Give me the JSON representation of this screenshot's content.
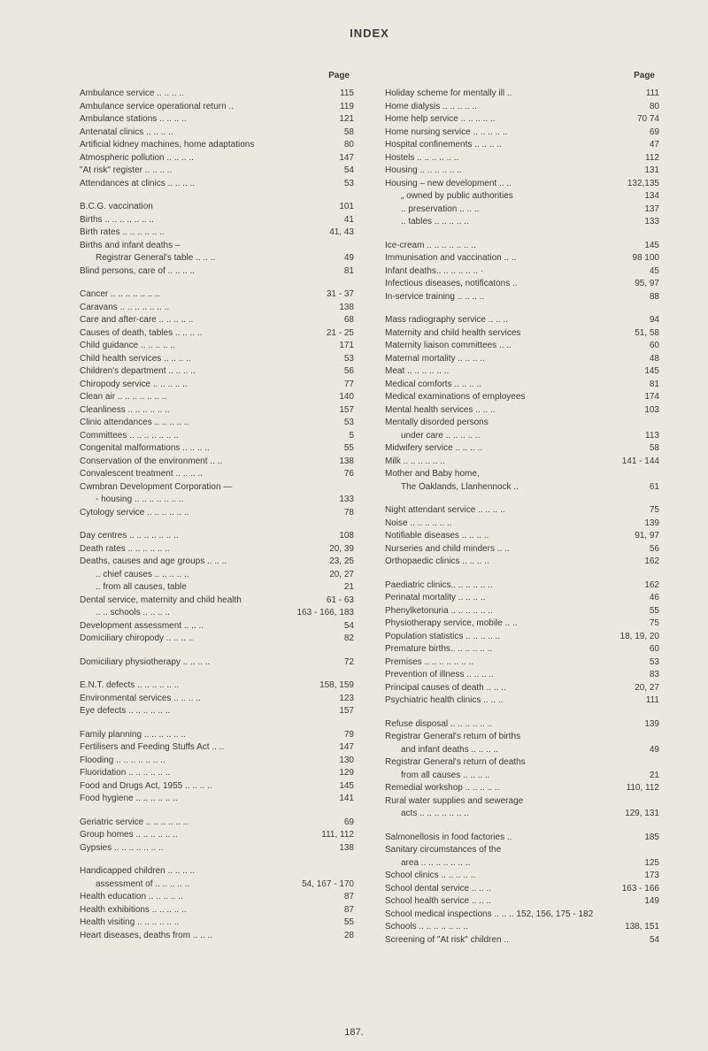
{
  "title": "INDEX",
  "pageHeaderLabel": "Page",
  "footer": "187.",
  "left": [
    {
      "t": "Ambulance service  .. .. .. ..",
      "p": "115"
    },
    {
      "t": "Ambulance service operational return ..",
      "p": "119"
    },
    {
      "t": "Ambulance stations   .. .. .. ..",
      "p": "121"
    },
    {
      "t": "Antenatal clinics    .. .. .. ..",
      "p": "58"
    },
    {
      "t": "Artificial kidney machines, home adaptations",
      "p": "80"
    },
    {
      "t": "Atmospheric pollution .. .. .. ..",
      "p": "147"
    },
    {
      "t": "\"At risk\" register   .. .. .. ..",
      "p": "54"
    },
    {
      "t": "Attendances at clinics .. .. .. ..",
      "p": "53"
    },
    {
      "gap": true
    },
    {
      "t": "B.C.G. vaccination",
      "p": "101"
    },
    {
      "t": "Births .. .. .. .. .. .. ..",
      "p": "41"
    },
    {
      "t": "Birth rates  .. .. .. .. .. ..",
      "p": "41, 43"
    },
    {
      "t": "Births and infant deaths –",
      "p": ""
    },
    {
      "t": "Registrar General's table  .. .. ..",
      "p": "49",
      "i": 1
    },
    {
      "t": "Blind persons, care of  .. .. .. ..",
      "p": "81"
    },
    {
      "gap": true
    },
    {
      "t": "Cancer  .. .. .. .. .. .. ..",
      "p": "31 - 37"
    },
    {
      "t": "Caravans .. .. .. .. .. .. ..",
      "p": "138"
    },
    {
      "t": "Care and after-care .. .. .. .. ..",
      "p": "68"
    },
    {
      "t": "Causes of death, tables .. .. .. ..",
      "p": "21 - 25"
    },
    {
      "t": "Child guidance  .. .. .. .. ..",
      "p": "171"
    },
    {
      "t": "Child health services  .. .. .. ..",
      "p": "53"
    },
    {
      "t": "Children's department .. .. .. ..",
      "p": "56"
    },
    {
      "t": "Chiropody service  .. .. .. .. ..",
      "p": "77"
    },
    {
      "t": "Clean air .. .. .. .. .. .. ..",
      "p": "140"
    },
    {
      "t": "Cleanliness  .. .. .. .. .. ..",
      "p": "157"
    },
    {
      "t": "Clinic attendances  .. .. .. .. ..",
      "p": "53"
    },
    {
      "t": "Committees .. .. .. .. .. .. ..",
      "p": "5"
    },
    {
      "t": "Congenital malformations .. .. .. ..",
      "p": "55"
    },
    {
      "t": "Conservation of the environment .. ..",
      "p": "138"
    },
    {
      "t": "Convalescent treatment .. .. .. ..",
      "p": "76"
    },
    {
      "t": "Cwmbran Development Corporation —",
      "p": ""
    },
    {
      "t": "- housing .. .. .. .. .. .. ..",
      "p": "133",
      "i": 1
    },
    {
      "t": "Cytology service .. .. .. .. .. ..",
      "p": "78"
    },
    {
      "gap": true
    },
    {
      "t": "Day centres .. .. .. .. .. .. ..",
      "p": "108"
    },
    {
      "t": "Death rates  .. .. .. .. .. ..",
      "p": "20, 39"
    },
    {
      "t": "Deaths, causes and age groups .. .. ..",
      "p": "23, 25"
    },
    {
      "t": "..   chief causes .. .. .. .. ..",
      "p": "20, 27",
      "i": 1
    },
    {
      "t": "..   from all causes, table",
      "p": "21",
      "i": 1
    },
    {
      "t": "Dental service, maternity and child health",
      "p": "61 - 63"
    },
    {
      "t": "..  ..  schools  .. .. .. ..",
      "p": "163 - 166, 183",
      "i": 1
    },
    {
      "t": "Development assessment  .. .. ..",
      "p": "54"
    },
    {
      "t": "Domiciliary chiropody .. .. .. ..",
      "p": "82"
    },
    {
      "gap": true
    },
    {
      "t": "Domiciliary physiotherapy .. .. .. ..",
      "p": "72"
    },
    {
      "gap": true
    },
    {
      "t": "E.N.T. defects  .. .. .. .. .. ..",
      "p": "158, 159"
    },
    {
      "t": "Environmental services .. .. .. ..",
      "p": "123"
    },
    {
      "t": "Eye defects  .. .. .. .. .. ..",
      "p": "157"
    },
    {
      "gap": true
    },
    {
      "t": "Family planning .. .. .. .. .. ..",
      "p": "79"
    },
    {
      "t": "Fertilisers and Feeding Stuffs Act .. ..",
      "p": "147"
    },
    {
      "t": "Flooding .. .. .. .. .. .. ..",
      "p": "130"
    },
    {
      "t": "Fluoridation .. .. .. .. .. ..",
      "p": "129"
    },
    {
      "t": "Food and Drugs Act, 1955 .. .. .. ..",
      "p": "145"
    },
    {
      "t": "Food hygiene  .. .. .. .. .. ..",
      "p": "141"
    },
    {
      "gap": true
    },
    {
      "t": "Geriatric service .. .. .. .. .. ..",
      "p": "69"
    },
    {
      "t": "Group homes  .. .. .. .. .. ..",
      "p": "111, 112"
    },
    {
      "t": "Gypsies  .. .. .. .. .. .. ..",
      "p": "138"
    },
    {
      "gap": true
    },
    {
      "t": "Handicapped children  .. .. .. ..",
      "p": ""
    },
    {
      "t": "assessment of  .. .. .. .. ..",
      "p": "54, 167 - 170",
      "i": 1
    },
    {
      "t": "Health education  .. .. .. .. ..",
      "p": "87"
    },
    {
      "t": "Health exhibitions  .. .. .. .. ..",
      "p": "87"
    },
    {
      "t": "Health visiting  .. .. .. .. .. ..",
      "p": "55"
    },
    {
      "t": "Heart diseases, deaths from  .. .. ..",
      "p": "28"
    }
  ],
  "right": [
    {
      "t": "Holiday scheme for mentally ill  ..",
      "p": "111"
    },
    {
      "t": "Home dialysis   .. .. .. .. ..",
      "p": "80"
    },
    {
      "t": "Home help service  .. .. .. .. ..",
      "p": "70  74"
    },
    {
      "t": "Home nursing service .. .. .. .. ..",
      "p": "69"
    },
    {
      "t": "Hospital confinements .. .. .. ..",
      "p": "47"
    },
    {
      "t": "Hostels   .. .. .. .. .. ..",
      "p": "112"
    },
    {
      "t": "Housing   .. .. .. .. .. ..",
      "p": "131"
    },
    {
      "t": "Housing – new development  .. ..",
      "p": "132,135"
    },
    {
      "t": "„     owned by public authorities",
      "p": "134",
      "i": 1
    },
    {
      "t": "..    preservation  .. .. ..",
      "p": "137",
      "i": 1
    },
    {
      "t": "..    tables .. .. .. .. ..",
      "p": "133",
      "i": 1
    },
    {
      "gap": true
    },
    {
      "t": "Ice-cream .. .. .. .. .. .. ..",
      "p": "145"
    },
    {
      "t": "Immunisation and vaccination .. ..",
      "p": "98  100"
    },
    {
      "t": "Infant deaths.. .. .. .. .. .. ·",
      "p": "45"
    },
    {
      "t": "Infectious diseases, notificatons  ..",
      "p": "95, 97"
    },
    {
      "t": "In-service training  .. .. .. ..",
      "p": "88"
    },
    {
      "gap": true
    },
    {
      "t": "Mass radiography service  .. .. ..",
      "p": "94"
    },
    {
      "t": "Maternity and child health services",
      "p": "51, 58"
    },
    {
      "t": "Maternity liaison committees  .. ..",
      "p": "60"
    },
    {
      "t": "Maternal mortality  .. .. .. ..",
      "p": "48"
    },
    {
      "t": "Meat    .. .. .. .. .. ..",
      "p": "145"
    },
    {
      "t": "Medical comforts   .. .. .. ..",
      "p": "81"
    },
    {
      "t": "Medical examinations of employees",
      "p": "174"
    },
    {
      "t": "Mental health services  .. .. ..",
      "p": "103"
    },
    {
      "t": "Mentally disorded persons",
      "p": ""
    },
    {
      "t": "under care  .. .. .. .. ..",
      "p": "113",
      "i": 1
    },
    {
      "t": "Midwifery service  .. .. .. ..",
      "p": "58"
    },
    {
      "t": "Milk    .. .. .. .. .. ..",
      "p": "141 - 144"
    },
    {
      "t": "Mother and Baby home,",
      "p": ""
    },
    {
      "t": "The Oaklands, Llanhennock  ..",
      "p": "61",
      "i": 1
    },
    {
      "gap": true
    },
    {
      "t": "Night attendant service .. .. .. ..",
      "p": "75"
    },
    {
      "t": "Noise   .. .. .. .. .. ..",
      "p": "139"
    },
    {
      "t": "Notifiable diseases  .. .. .. ..",
      "p": "91, 97"
    },
    {
      "t": "Nurseries and child minders  .. ..",
      "p": "56"
    },
    {
      "t": "Orthopaedic clinics  .. .. .. ..",
      "p": "162"
    },
    {
      "gap": true
    },
    {
      "t": "Paediatric clinics.. .. .. .. .. ..",
      "p": "162"
    },
    {
      "t": "Perinatal mortality  .. .. .. ..",
      "p": "46"
    },
    {
      "t": "Phenylketonuria .. .. .. .. .. ..",
      "p": "55"
    },
    {
      "t": "Physiotherapy service, mobile .. ..",
      "p": "75"
    },
    {
      "t": "Population statistics .. .. .. .. ..",
      "p": "18, 19, 20"
    },
    {
      "t": "Premature births.. .. .. .. .. ..",
      "p": "60"
    },
    {
      "t": "Premises .. .. .. .. .. .. ..",
      "p": "53"
    },
    {
      "t": "Prevention of illness  .. .. .. ..",
      "p": "83"
    },
    {
      "t": "Principal causes of death  .. .. ..",
      "p": "20, 27"
    },
    {
      "t": "Psychiatric health clinics  .. .. ..",
      "p": "111"
    },
    {
      "gap": true
    },
    {
      "t": "Refuse disposal .. .. .. .. .. ..",
      "p": "139"
    },
    {
      "t": "Registrar General's return of births",
      "p": ""
    },
    {
      "t": "and infant deaths  .. .. .. ..",
      "p": "49",
      "i": 1
    },
    {
      "t": "Registrar General's return of deaths",
      "p": ""
    },
    {
      "t": "from all causes  .. .. .. ..",
      "p": "21",
      "i": 1
    },
    {
      "t": "Remedial workshop .. .. .. .. ..",
      "p": "110, 112"
    },
    {
      "t": "Rural water supplies and sewerage",
      "p": ""
    },
    {
      "t": "acts  .. .. .. .. .. .. ..",
      "p": "129, 131",
      "i": 1
    },
    {
      "gap": true
    },
    {
      "t": "Salmonellosis in food factories  ..",
      "p": "185"
    },
    {
      "t": "Sanitary circumstances of the",
      "p": ""
    },
    {
      "t": "area .. .. .. .. .. .. ..",
      "p": "125",
      "i": 1
    },
    {
      "t": "School clinics  .. .. .. .. ..",
      "p": "173"
    },
    {
      "t": "School dental service  .. .. ..",
      "p": "163 - 166"
    },
    {
      "t": "School health service  .. .. ..",
      "p": "149"
    },
    {
      "t": "School medical inspections .. .. .. 152, 156, 175 - 182",
      "p": ""
    },
    {
      "t": "Schools  .. .. .. .. .. .. ..",
      "p": "138, 151"
    },
    {
      "t": "Screening of \"At risk\" children  ..",
      "p": "54"
    }
  ]
}
